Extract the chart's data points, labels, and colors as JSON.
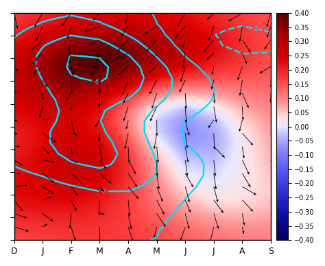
{
  "xlabel_months": [
    "D",
    "J",
    "F",
    "M",
    "A",
    "M",
    "J",
    "J",
    "A",
    "S"
  ],
  "colorbar_ticks": [
    0.4,
    0.35,
    0.3,
    0.25,
    0.2,
    0.15,
    0.1,
    0.05,
    0,
    -0.05,
    -0.1,
    -0.15,
    -0.2,
    -0.25,
    -0.3,
    -0.35,
    -0.4
  ],
  "vmin": -0.4,
  "vmax": 0.4,
  "contour_color": "#00DDFF",
  "contour_linewidth": 1.8,
  "figsize": [
    4.74,
    3.88
  ],
  "dpi": 100
}
